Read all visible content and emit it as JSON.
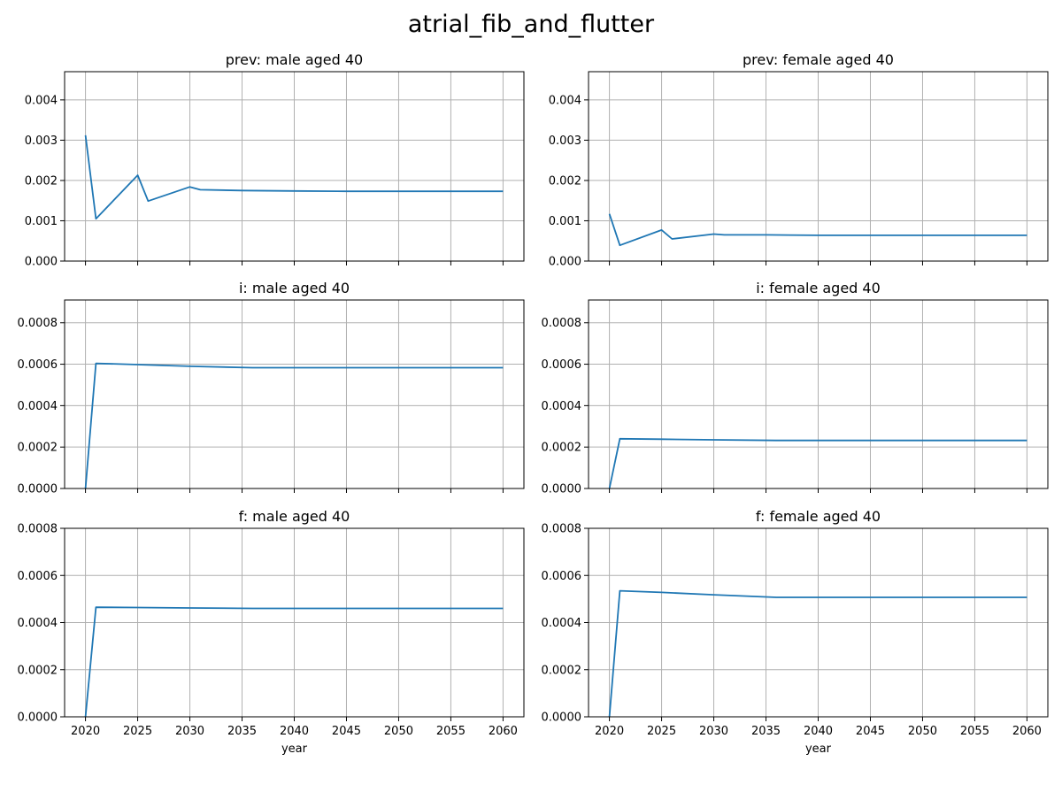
{
  "figure_title": "atrial_fib_and_flutter",
  "colors": {
    "series": "#1f77b4",
    "grid": "#b0b0b0"
  },
  "chart_data": [
    {
      "type": "line",
      "title": "prev: male aged 40",
      "xlabel": "",
      "ylabel": "",
      "xlim": [
        2018,
        2062
      ],
      "ylim": [
        0,
        0.0047
      ],
      "x_ticks": [
        2020,
        2025,
        2030,
        2035,
        2040,
        2045,
        2050,
        2055,
        2060
      ],
      "x_tick_labels": [],
      "y_ticks": [
        "0.000",
        "0.001",
        "0.002",
        "0.003",
        "0.004"
      ],
      "grid": true,
      "series": [
        {
          "x": [
            2020,
            2021,
            2025,
            2026,
            2030,
            2031,
            2035,
            2040,
            2045,
            2050,
            2055,
            2060
          ],
          "y": [
            0.00312,
            0.00105,
            0.00213,
            0.00149,
            0.00184,
            0.00177,
            0.00175,
            0.00174,
            0.00173,
            0.00173,
            0.00173,
            0.00173
          ]
        }
      ]
    },
    {
      "type": "line",
      "title": "prev: female aged 40",
      "xlabel": "",
      "ylabel": "",
      "xlim": [
        2018,
        2062
      ],
      "ylim": [
        0,
        0.0047
      ],
      "x_ticks": [
        2020,
        2025,
        2030,
        2035,
        2040,
        2045,
        2050,
        2055,
        2060
      ],
      "x_tick_labels": [],
      "y_ticks": [
        "0.000",
        "0.001",
        "0.002",
        "0.003",
        "0.004"
      ],
      "grid": true,
      "series": [
        {
          "x": [
            2020,
            2021,
            2025,
            2026,
            2030,
            2031,
            2035,
            2040,
            2045,
            2050,
            2055,
            2060
          ],
          "y": [
            0.00117,
            0.00039,
            0.00077,
            0.00055,
            0.00067,
            0.00065,
            0.00065,
            0.00064,
            0.00064,
            0.00064,
            0.00064,
            0.00064
          ]
        }
      ]
    },
    {
      "type": "line",
      "title": "i: male aged 40",
      "xlabel": "",
      "ylabel": "",
      "xlim": [
        2018,
        2062
      ],
      "ylim": [
        0,
        0.00091
      ],
      "x_ticks": [
        2020,
        2025,
        2030,
        2035,
        2040,
        2045,
        2050,
        2055,
        2060
      ],
      "x_tick_labels": [],
      "y_ticks": [
        "0.0000",
        "0.0002",
        "0.0004",
        "0.0006",
        "0.0008"
      ],
      "grid": true,
      "series": [
        {
          "x": [
            2020,
            2021,
            2025,
            2030,
            2036,
            2040,
            2045,
            2050,
            2055,
            2060
          ],
          "y": [
            0.0,
            0.000604,
            0.000598,
            0.00059,
            0.000583,
            0.000583,
            0.000583,
            0.000583,
            0.000583,
            0.000583
          ]
        }
      ]
    },
    {
      "type": "line",
      "title": "i: female aged 40",
      "xlabel": "",
      "ylabel": "",
      "xlim": [
        2018,
        2062
      ],
      "ylim": [
        0,
        0.00091
      ],
      "x_ticks": [
        2020,
        2025,
        2030,
        2035,
        2040,
        2045,
        2050,
        2055,
        2060
      ],
      "x_tick_labels": [],
      "y_ticks": [
        "0.0000",
        "0.0002",
        "0.0004",
        "0.0006",
        "0.0008"
      ],
      "grid": true,
      "series": [
        {
          "x": [
            2020,
            2021,
            2025,
            2030,
            2036,
            2040,
            2045,
            2050,
            2055,
            2060
          ],
          "y": [
            0.0,
            0.00024,
            0.000238,
            0.000235,
            0.000232,
            0.000232,
            0.000232,
            0.000232,
            0.000232,
            0.000232
          ]
        }
      ]
    },
    {
      "type": "line",
      "title": "f: male aged 40",
      "xlabel": "year",
      "ylabel": "",
      "xlim": [
        2018,
        2062
      ],
      "ylim": [
        0,
        0.0008
      ],
      "x_ticks": [
        2020,
        2025,
        2030,
        2035,
        2040,
        2045,
        2050,
        2055,
        2060
      ],
      "x_tick_labels": [
        "2020",
        "2025",
        "2030",
        "2035",
        "2040",
        "2045",
        "2050",
        "2055",
        "2060"
      ],
      "y_ticks": [
        "0.0000",
        "0.0002",
        "0.0004",
        "0.0006",
        "0.0008"
      ],
      "grid": true,
      "series": [
        {
          "x": [
            2020,
            2021,
            2025,
            2030,
            2036,
            2040,
            2045,
            2050,
            2055,
            2060
          ],
          "y": [
            0.0,
            0.000465,
            0.000464,
            0.000462,
            0.00046,
            0.00046,
            0.00046,
            0.00046,
            0.00046,
            0.00046
          ]
        }
      ]
    },
    {
      "type": "line",
      "title": "f: female aged 40",
      "xlabel": "year",
      "ylabel": "",
      "xlim": [
        2018,
        2062
      ],
      "ylim": [
        0,
        0.0008
      ],
      "x_ticks": [
        2020,
        2025,
        2030,
        2035,
        2040,
        2045,
        2050,
        2055,
        2060
      ],
      "x_tick_labels": [
        "2020",
        "2025",
        "2030",
        "2035",
        "2040",
        "2045",
        "2050",
        "2055",
        "2060"
      ],
      "y_ticks": [
        "0.0000",
        "0.0002",
        "0.0004",
        "0.0006",
        "0.0008"
      ],
      "grid": true,
      "series": [
        {
          "x": [
            2020,
            2021,
            2025,
            2030,
            2036,
            2040,
            2045,
            2050,
            2055,
            2060
          ],
          "y": [
            0.0,
            0.000535,
            0.000528,
            0.000518,
            0.000507,
            0.000507,
            0.000507,
            0.000507,
            0.000507,
            0.000507
          ]
        }
      ]
    }
  ]
}
